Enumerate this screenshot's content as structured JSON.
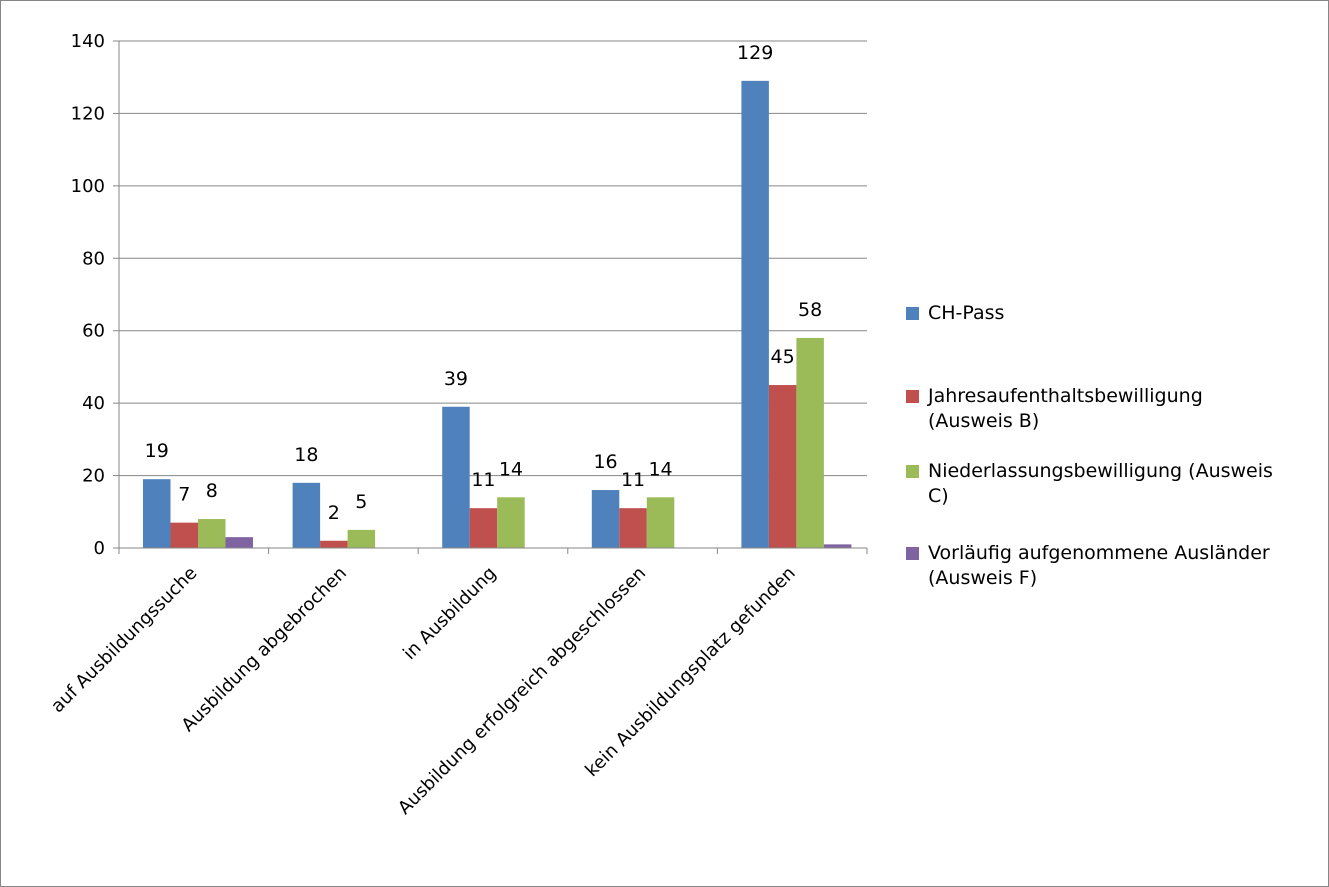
{
  "chart_data": {
    "type": "bar",
    "categories": [
      "auf Ausbildungssuche",
      "Ausbildung abgebrochen",
      "in Ausbildung",
      "Ausbildung erfolgreich abgeschlossen",
      "kein Ausbildungsplatz gefunden"
    ],
    "series": [
      {
        "name": "CH-Pass",
        "color": "#4F81BD",
        "values": [
          19,
          18,
          39,
          16,
          129
        ],
        "labels": [
          "19",
          "18",
          "39",
          "16",
          "129"
        ]
      },
      {
        "name": "Jahresaufenthaltsbewilligung (Ausweis B)",
        "color": "#C0504D",
        "values": [
          7,
          2,
          11,
          11,
          45
        ],
        "labels": [
          "7",
          "2",
          "11",
          "11",
          "45"
        ]
      },
      {
        "name": "Niederlassungsbewilligung (Ausweis C)",
        "color": "#9BBB59",
        "values": [
          8,
          5,
          14,
          14,
          58
        ],
        "labels": [
          "8",
          "5",
          "14",
          "14",
          "58"
        ]
      },
      {
        "name": "Vorläufig aufgenommene Ausländer (Ausweis F)",
        "color": "#8064A2",
        "values": [
          3,
          0,
          0,
          0,
          1
        ],
        "labels": [
          "",
          "",
          "",
          "",
          ""
        ]
      }
    ],
    "ylim": [
      0,
      140
    ],
    "yticks": [
      "0",
      "20",
      "40",
      "60",
      "80",
      "100",
      "120",
      "140"
    ],
    "grid": true,
    "legend_position": "right",
    "title": "",
    "xlabel": "",
    "ylabel": ""
  }
}
